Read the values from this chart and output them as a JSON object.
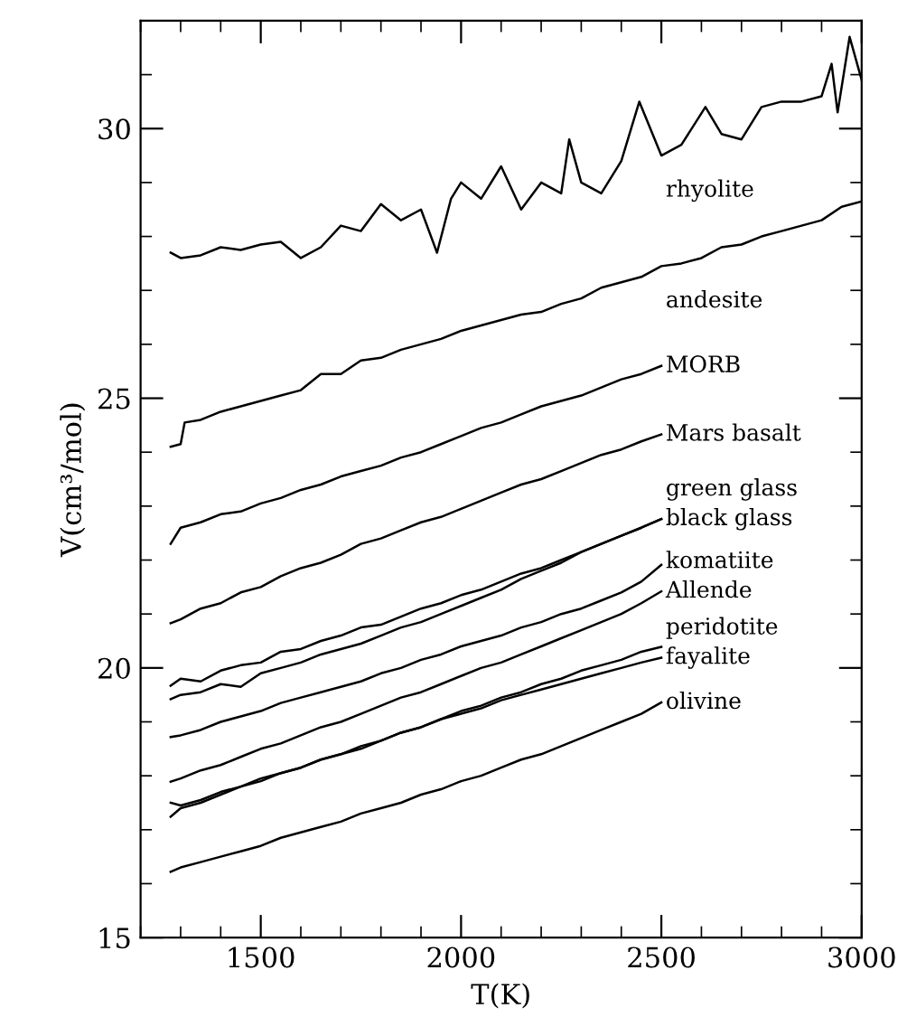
{
  "chart_data": {
    "type": "line",
    "xlabel": "T(K)",
    "ylabel": "V(cm³/mol)",
    "xlim": [
      1200,
      3000
    ],
    "xticks": [
      1500,
      2000,
      2500,
      3000
    ],
    "ylim": [
      15,
      32
    ],
    "yticks": [
      15,
      20,
      25,
      30
    ],
    "grid": false,
    "legend": false,
    "marker": "none",
    "line_style": "solid",
    "x": [
      1275,
      1300,
      1350,
      1400,
      1450,
      1500,
      1550,
      1600,
      1650,
      1700,
      1750,
      1800,
      1850,
      1900,
      1950,
      2000,
      2050,
      2100,
      2150,
      2200,
      2250,
      2300,
      2350,
      2400,
      2450,
      2500
    ],
    "series": [
      {
        "name": "rhyolite",
        "color": "#000000",
        "x": [
          1275,
          1300,
          1350,
          1400,
          1450,
          1500,
          1550,
          1600,
          1650,
          1700,
          1750,
          1800,
          1850,
          1900,
          1940,
          1975,
          2000,
          2050,
          2100,
          2150,
          2200,
          2250,
          2270,
          2300,
          2350,
          2400,
          2445,
          2500,
          2550,
          2610,
          2650,
          2700,
          2750,
          2800,
          2850,
          2900,
          2925,
          2940,
          2970,
          3000
        ],
        "values": [
          27.7,
          27.6,
          27.65,
          27.8,
          27.75,
          27.85,
          27.9,
          27.6,
          27.8,
          28.2,
          28.1,
          28.6,
          28.3,
          28.5,
          27.7,
          28.7,
          29.0,
          28.7,
          29.3,
          28.5,
          29.0,
          28.8,
          29.8,
          29.0,
          28.8,
          29.4,
          30.5,
          29.5,
          29.7,
          30.4,
          29.9,
          29.8,
          30.4,
          30.5,
          30.5,
          30.6,
          31.2,
          30.3,
          31.7,
          30.9
        ]
      },
      {
        "name": "andesite",
        "color": "#000000",
        "x": [
          1275,
          1300,
          1310,
          1350,
          1400,
          1450,
          1500,
          1550,
          1600,
          1650,
          1700,
          1750,
          1800,
          1850,
          1900,
          1950,
          2000,
          2050,
          2100,
          2150,
          2200,
          2250,
          2300,
          2350,
          2400,
          2450,
          2500,
          2550,
          2600,
          2650,
          2700,
          2750,
          2800,
          2850,
          2900,
          2950,
          3000
        ],
        "values": [
          24.1,
          24.15,
          24.55,
          24.6,
          24.75,
          24.85,
          24.95,
          25.05,
          25.15,
          25.45,
          25.45,
          25.7,
          25.75,
          25.9,
          26.0,
          26.1,
          26.25,
          26.35,
          26.45,
          26.55,
          26.6,
          26.75,
          26.85,
          27.05,
          27.15,
          27.25,
          27.45,
          27.5,
          27.6,
          27.8,
          27.85,
          28.0,
          28.1,
          28.2,
          28.3,
          28.55,
          28.65
        ]
      },
      {
        "name": "MORB",
        "color": "#000000",
        "values": [
          22.3,
          22.6,
          22.7,
          22.85,
          22.9,
          23.05,
          23.15,
          23.3,
          23.4,
          23.55,
          23.65,
          23.75,
          23.9,
          24.0,
          24.15,
          24.3,
          24.45,
          24.55,
          24.7,
          24.85,
          24.95,
          25.05,
          25.2,
          25.35,
          25.45,
          25.6
        ]
      },
      {
        "name": "Mars basalt",
        "color": "#000000",
        "values": [
          20.83,
          20.9,
          21.1,
          21.2,
          21.4,
          21.5,
          21.7,
          21.85,
          21.95,
          22.1,
          22.3,
          22.4,
          22.55,
          22.7,
          22.8,
          22.95,
          23.1,
          23.25,
          23.4,
          23.5,
          23.65,
          23.8,
          23.95,
          24.05,
          24.2,
          24.33
        ]
      },
      {
        "name": "green glass",
        "color": "#000000",
        "values": [
          19.67,
          19.8,
          19.75,
          19.95,
          20.05,
          20.1,
          20.3,
          20.35,
          20.5,
          20.6,
          20.75,
          20.8,
          20.95,
          21.1,
          21.2,
          21.35,
          21.45,
          21.6,
          21.75,
          21.85,
          22.0,
          22.15,
          22.3,
          22.45,
          22.6,
          22.76
        ]
      },
      {
        "name": "black glass",
        "color": "#000000",
        "values": [
          19.42,
          19.5,
          19.55,
          19.7,
          19.65,
          19.9,
          20.0,
          20.1,
          20.25,
          20.35,
          20.45,
          20.6,
          20.75,
          20.85,
          21.0,
          21.15,
          21.3,
          21.45,
          21.65,
          21.8,
          21.95,
          22.15,
          22.3,
          22.45,
          22.6,
          22.76
        ]
      },
      {
        "name": "komatiite",
        "color": "#000000",
        "values": [
          18.72,
          18.75,
          18.85,
          19.0,
          19.1,
          19.2,
          19.35,
          19.45,
          19.55,
          19.65,
          19.75,
          19.9,
          20.0,
          20.15,
          20.25,
          20.4,
          20.5,
          20.6,
          20.75,
          20.85,
          21.0,
          21.1,
          21.25,
          21.4,
          21.6,
          21.91
        ]
      },
      {
        "name": "Allende",
        "color": "#000000",
        "values": [
          17.89,
          17.95,
          18.1,
          18.2,
          18.35,
          18.5,
          18.6,
          18.75,
          18.9,
          19.0,
          19.15,
          19.3,
          19.45,
          19.55,
          19.7,
          19.85,
          20.0,
          20.1,
          20.25,
          20.4,
          20.55,
          20.7,
          20.85,
          21.0,
          21.2,
          21.42
        ]
      },
      {
        "name": "peridotite",
        "color": "#000000",
        "values": [
          17.5,
          17.45,
          17.55,
          17.7,
          17.8,
          17.95,
          18.05,
          18.15,
          18.3,
          18.4,
          18.55,
          18.65,
          18.8,
          18.9,
          19.05,
          19.2,
          19.3,
          19.45,
          19.55,
          19.7,
          19.8,
          19.95,
          20.05,
          20.15,
          20.3,
          20.39
        ]
      },
      {
        "name": "fayalite",
        "color": "#000000",
        "values": [
          17.24,
          17.4,
          17.5,
          17.65,
          17.8,
          17.9,
          18.05,
          18.15,
          18.3,
          18.4,
          18.5,
          18.65,
          18.8,
          18.9,
          19.05,
          19.15,
          19.25,
          19.4,
          19.5,
          19.6,
          19.7,
          19.8,
          19.9,
          20.0,
          20.1,
          20.19
        ]
      },
      {
        "name": "olivine",
        "color": "#000000",
        "values": [
          16.22,
          16.3,
          16.4,
          16.5,
          16.6,
          16.7,
          16.85,
          16.95,
          17.05,
          17.15,
          17.3,
          17.4,
          17.5,
          17.65,
          17.75,
          17.9,
          18.0,
          18.15,
          18.3,
          18.4,
          18.55,
          18.7,
          18.85,
          19.0,
          19.15,
          19.36
        ]
      }
    ]
  }
}
